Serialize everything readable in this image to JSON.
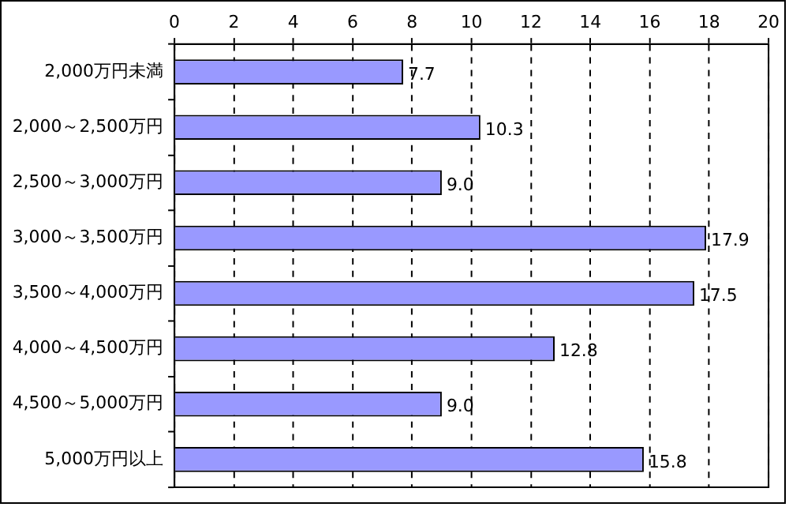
{
  "chart_data": {
    "type": "bar",
    "orientation": "horizontal",
    "categories": [
      "2,000万円未満",
      "2,000～2,500万円",
      "2,500～3,000万円",
      "3,000～3,500万円",
      "3,500～4,000万円",
      "4,000～4,500万円",
      "4,500～5,000万円",
      "5,000万円以上"
    ],
    "values": [
      7.7,
      10.3,
      9.0,
      17.9,
      17.5,
      12.8,
      9.0,
      15.8
    ],
    "value_labels": [
      "7.7",
      "10.3",
      "9.0",
      "17.9",
      "17.5",
      "12.8",
      "9.0",
      "15.8"
    ],
    "color": "#9999ff",
    "xlim": [
      0,
      20
    ],
    "xticks": [
      0,
      2,
      4,
      6,
      8,
      10,
      12,
      14,
      16,
      18,
      20
    ],
    "grid": "x",
    "legend": false
  }
}
